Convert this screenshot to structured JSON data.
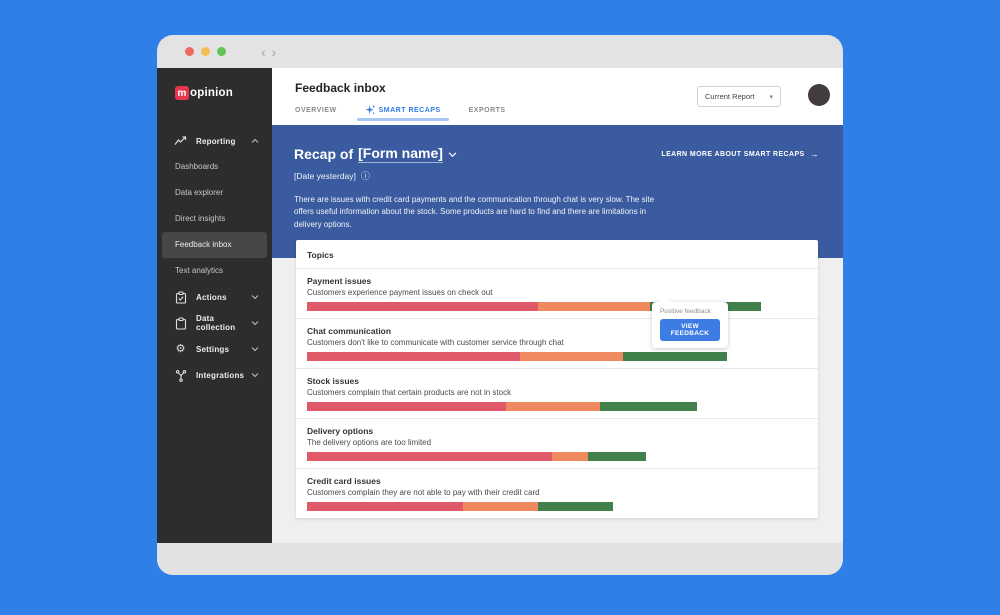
{
  "colors": {
    "negative": "#df5968",
    "neutral": "#f0895f",
    "positive": "#41804b"
  },
  "icons": {
    "code": "‹ ›",
    "gear": "⚙",
    "info": "ⓘ",
    "arrow_right": "→",
    "caret_down": "▾"
  },
  "sidebar": {
    "logo_mark": "m",
    "logo_text": "opinion",
    "reporting": {
      "label": "Reporting"
    },
    "reporting_items": [
      {
        "label": "Dashboards"
      },
      {
        "label": "Data explorer"
      },
      {
        "label": "Direct insights"
      },
      {
        "label": "Feedback inbox"
      },
      {
        "label": "Text analytics"
      }
    ],
    "sections": [
      {
        "label": "Actions"
      },
      {
        "label": "Data collection"
      },
      {
        "label": "Settings"
      },
      {
        "label": "Integrations"
      }
    ]
  },
  "header": {
    "title": "Feedback inbox",
    "tabs": [
      {
        "label": "OVERVIEW"
      },
      {
        "label": "SMART RECAPS"
      },
      {
        "label": "EXPORTS"
      }
    ],
    "report_select": "Current Report"
  },
  "recap": {
    "title_prefix": "Recap of",
    "form_name": "[Form name]",
    "date": "[Date yesterday]",
    "learn_more": "LEARN MORE ABOUT SMART RECAPS",
    "summary": "There are issues with credit card payments and the communication through chat is very slow. The site offers useful information about the stock. Some products are hard to find and there are limitations in delivery options."
  },
  "topics": {
    "heading": "Topics",
    "items": [
      {
        "title": "Payment issues",
        "description": "Customers experience payment issues on check out",
        "segments": {
          "negative": 231,
          "neutral": 112,
          "positive": 111
        }
      },
      {
        "title": "Chat communication",
        "description": "Customers don't like to communicate with customer service through chat",
        "segments": {
          "negative": 213,
          "neutral": 103,
          "positive": 104
        }
      },
      {
        "title": "Stock issues",
        "description": "Customers complain that certain products are not in stock",
        "segments": {
          "negative": 199,
          "neutral": 94,
          "positive": 97
        }
      },
      {
        "title": "Delivery options",
        "description": "The delivery options are too limited",
        "segments": {
          "negative": 245,
          "neutral": 36,
          "positive": 58
        }
      },
      {
        "title": "Credit card issues",
        "description": "Customers complain they are not able to pay with their credit card",
        "segments": {
          "negative": 156,
          "neutral": 75,
          "positive": 75
        }
      }
    ]
  },
  "tooltip": {
    "label": "Positive feedback",
    "button": "VIEW FEEDBACK"
  }
}
